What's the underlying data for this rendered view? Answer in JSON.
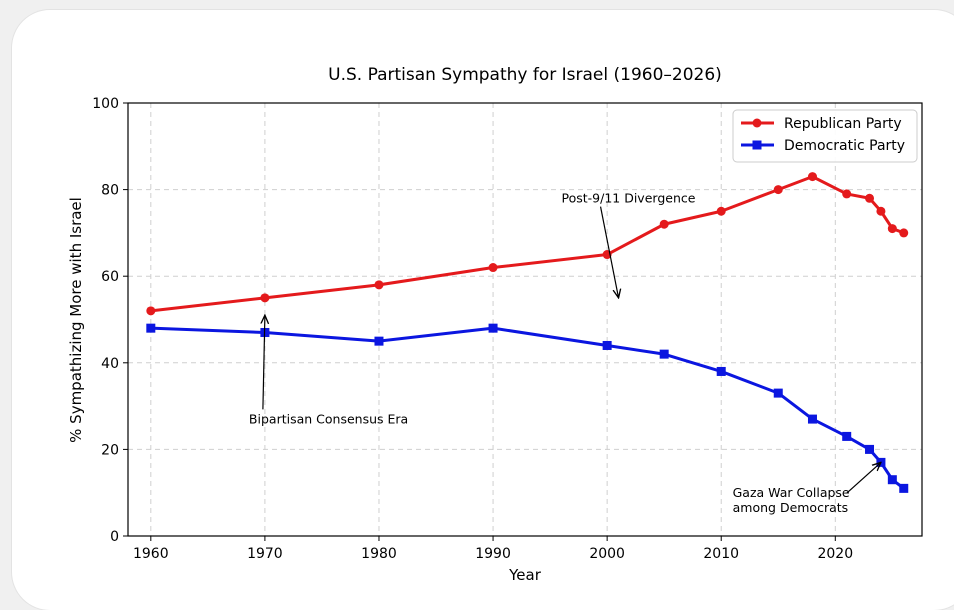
{
  "chart_data": {
    "type": "line",
    "title": "U.S. Partisan Sympathy for Israel (1960–2026)",
    "xlabel": "Year",
    "ylabel": "% Sympathizing More with Israel",
    "xlim": [
      1958,
      2027.6
    ],
    "ylim": [
      0,
      100
    ],
    "x_ticks": [
      1960,
      1970,
      1980,
      1990,
      2000,
      2010,
      2020
    ],
    "y_ticks": [
      0,
      20,
      40,
      60,
      80,
      100
    ],
    "grid": true,
    "legend_position": "top-right",
    "series": [
      {
        "name": "Republican Party",
        "color": "#e41a1c",
        "marker": "circle",
        "x": [
          1960,
          1970,
          1980,
          1990,
          2000,
          2005,
          2010,
          2015,
          2018,
          2021,
          2023,
          2024,
          2025,
          2026
        ],
        "y": [
          52,
          55,
          58,
          62,
          65,
          72,
          75,
          80,
          83,
          79,
          78,
          75,
          71,
          70
        ]
      },
      {
        "name": "Democratic Party",
        "color": "#0b16e0",
        "marker": "square",
        "x": [
          1960,
          1970,
          1980,
          1990,
          2000,
          2005,
          2010,
          2015,
          2018,
          2021,
          2023,
          2024,
          2025,
          2026
        ],
        "y": [
          48,
          47,
          45,
          48,
          44,
          42,
          38,
          33,
          27,
          23,
          20,
          17,
          13,
          11
        ]
      }
    ],
    "annotations": [
      {
        "lines": [
          "Bipartisan Consensus Era"
        ],
        "text_at": [
          1968.6,
          26
        ],
        "arrow_to": [
          1970,
          51
        ]
      },
      {
        "lines": [
          "Post-9/11 Divergence"
        ],
        "text_at": [
          1996,
          77
        ],
        "arrow_to": [
          2001,
          55
        ]
      },
      {
        "lines": [
          "Gaza War Collapse",
          "among Democrats"
        ],
        "text_at": [
          2011,
          9
        ],
        "arrow_to": [
          2024,
          17
        ]
      }
    ]
  }
}
